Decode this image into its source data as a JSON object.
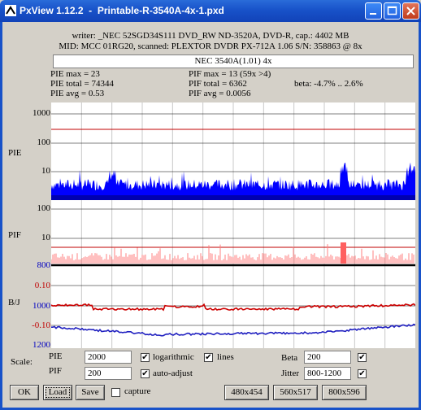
{
  "window": {
    "title": "PxView 1.12.2  -  Printable-R-3540A-4x-1.pxd"
  },
  "header": {
    "writer_line": "writer: _NEC 52SGD34S111 DVD_RW ND-3520A, DVD-R, cap.: 4402 MB",
    "mid_line": "MID: MCC 01RG20, scanned: PLEXTOR DVDR PX-712A 1.06 S/N: 358863 @ 8x",
    "name_box": "NEC 3540A(1.01) 4x"
  },
  "stats": {
    "pie_max": "PIE max = 23",
    "pie_total": "PIE total = 74344",
    "pie_avg": "PIE avg = 0.53",
    "pif_max": "PIF max = 13 (59x >4)",
    "pif_total": "PIF total = 6362",
    "pif_avg": "PIF avg = 0.0056",
    "beta": "beta: -4.7% .. 2.6%"
  },
  "axes": {
    "pie_label": "PIE",
    "pif_label": "PIF",
    "bj_label": "B/J",
    "pie_ticks": [
      "1000",
      "100",
      "10"
    ],
    "pif_ticks": [
      "100",
      "10"
    ],
    "bj_ticks": [
      "800",
      "0.10",
      "1000",
      "-0.10",
      "1200"
    ]
  },
  "controls": {
    "scale_label": "Scale:",
    "pie_label": "PIE",
    "pie_value": "2000",
    "pif_label": "PIF",
    "pif_value": "200",
    "logarithmic_label": "logarithmic",
    "logarithmic_checked": true,
    "lines_label": "lines",
    "lines_checked": true,
    "auto_adjust_label": "auto-adjust",
    "auto_adjust_checked": true,
    "beta_label": "Beta",
    "beta_value": "200",
    "beta_checked": true,
    "jitter_label": "Jitter",
    "jitter_value": "800-1200",
    "jitter_checked": true,
    "capture_label": "capture",
    "capture_checked": false
  },
  "buttons": {
    "ok": "OK",
    "load": "Load",
    "save": "Save",
    "size1": "480x454",
    "size2": "560x517",
    "size3": "800x596"
  },
  "colors": {
    "pie": "#0000ff",
    "pif": "#ff8080",
    "threshold": "#c00000",
    "beta": "#cc0000",
    "jitter": "#2020c0",
    "title_bar": "#1852c9"
  }
}
